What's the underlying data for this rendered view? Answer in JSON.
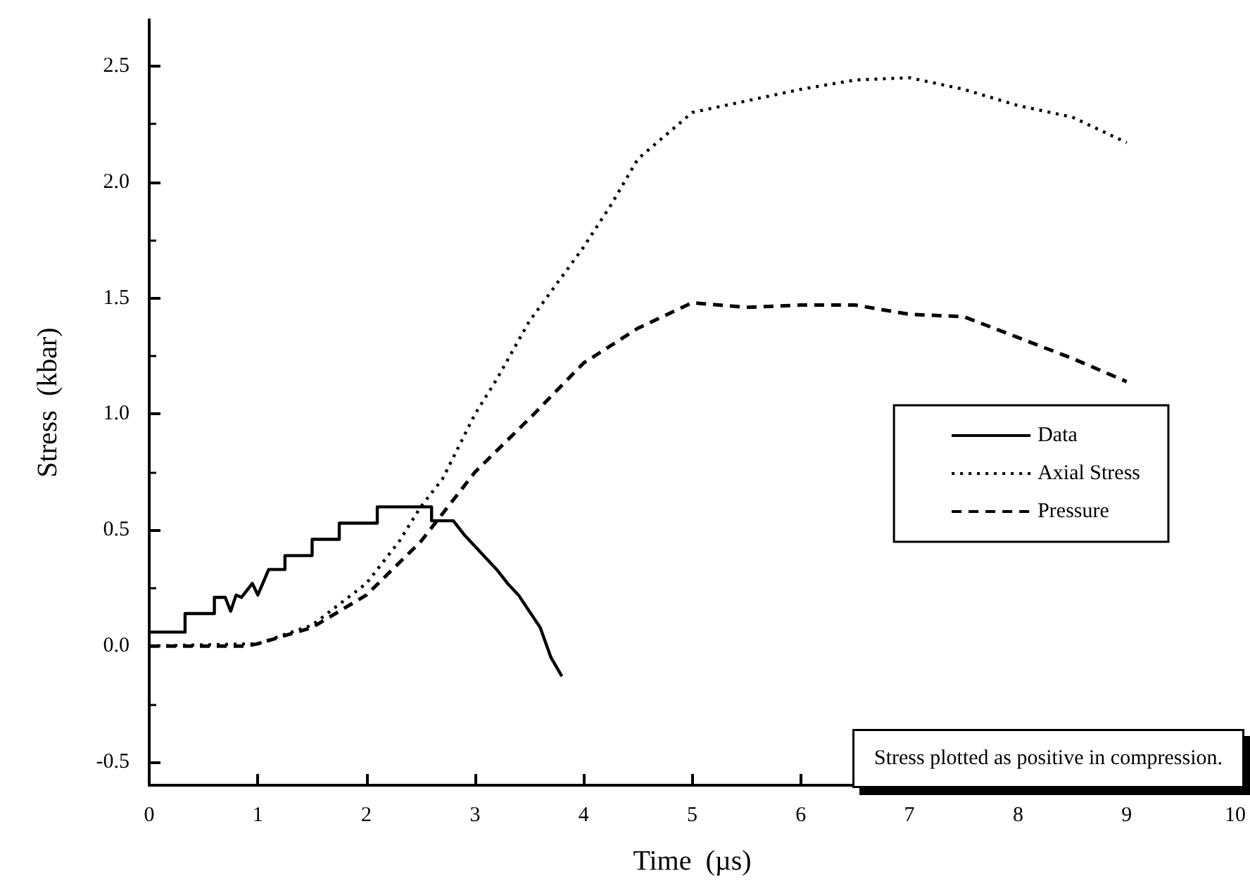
{
  "chart_data": {
    "type": "line",
    "xlabel": "Time  (µs)",
    "ylabel": "Stress  (kbar)",
    "xlim": [
      0,
      10
    ],
    "xticks": [
      0,
      1,
      2,
      3,
      4,
      5,
      6,
      7,
      8,
      9,
      10
    ],
    "ylim": [
      -0.6,
      2.7
    ],
    "yticks": [
      {
        "value": -0.5,
        "label": "-0.5"
      },
      {
        "value": 0,
        "label": "0.0"
      },
      {
        "value": 0.5,
        "label": "0.5"
      },
      {
        "value": 1,
        "label": "1.0"
      },
      {
        "value": 1.5,
        "label": "1.5"
      },
      {
        "value": 2,
        "label": "2.0"
      },
      {
        "value": 2.5,
        "label": "2.5"
      }
    ],
    "grid": false,
    "legend": "right",
    "marker": "none",
    "annotations": [
      "Stress plotted as positive in compression."
    ],
    "series": [
      {
        "name": "Data",
        "color": "#000000",
        "line_style": "solid",
        "x": [
          0,
          0.33,
          0.33,
          0.6,
          0.6,
          0.7,
          0.75,
          0.8,
          0.85,
          0.95,
          1.0,
          1.1,
          1.1,
          1.25,
          1.25,
          1.5,
          1.5,
          1.75,
          1.75,
          2.1,
          2.1,
          2.6,
          2.6,
          2.8,
          2.9,
          3.0,
          3.1,
          3.2,
          3.3,
          3.4,
          3.5,
          3.6,
          3.7,
          3.8
        ],
        "values": [
          0.06,
          0.06,
          0.14,
          0.14,
          0.21,
          0.21,
          0.15,
          0.22,
          0.21,
          0.27,
          0.22,
          0.33,
          0.33,
          0.33,
          0.39,
          0.39,
          0.46,
          0.46,
          0.53,
          0.53,
          0.6,
          0.6,
          0.54,
          0.54,
          0.48,
          0.43,
          0.38,
          0.33,
          0.27,
          0.22,
          0.15,
          0.08,
          -0.05,
          -0.13
        ]
      },
      {
        "name": "Axial Stress",
        "color": "#000000",
        "line_style": "dotted",
        "x": [
          0,
          1.0,
          1.5,
          2.0,
          2.3,
          2.5,
          2.7,
          3.0,
          3.2,
          3.5,
          4.0,
          4.25,
          4.5,
          5.0,
          5.5,
          6.0,
          6.5,
          7.0,
          7.5,
          8.0,
          8.5,
          9.0
        ],
        "values": [
          0,
          0.01,
          0.09,
          0.27,
          0.45,
          0.6,
          0.72,
          1.0,
          1.15,
          1.4,
          1.72,
          1.9,
          2.1,
          2.3,
          2.35,
          2.4,
          2.44,
          2.45,
          2.4,
          2.33,
          2.28,
          2.17
        ]
      },
      {
        "name": "Pressure",
        "color": "#000000",
        "line_style": "dashed",
        "x": [
          0,
          0.9,
          1.0,
          1.5,
          2.0,
          2.5,
          3.0,
          3.5,
          4.0,
          4.5,
          5.0,
          5.5,
          6.0,
          6.5,
          7.0,
          7.5,
          8.0,
          8.5,
          9.0
        ],
        "values": [
          0,
          0,
          0.01,
          0.08,
          0.22,
          0.45,
          0.75,
          0.98,
          1.22,
          1.37,
          1.48,
          1.46,
          1.47,
          1.47,
          1.43,
          1.42,
          1.33,
          1.24,
          1.14
        ]
      }
    ]
  }
}
